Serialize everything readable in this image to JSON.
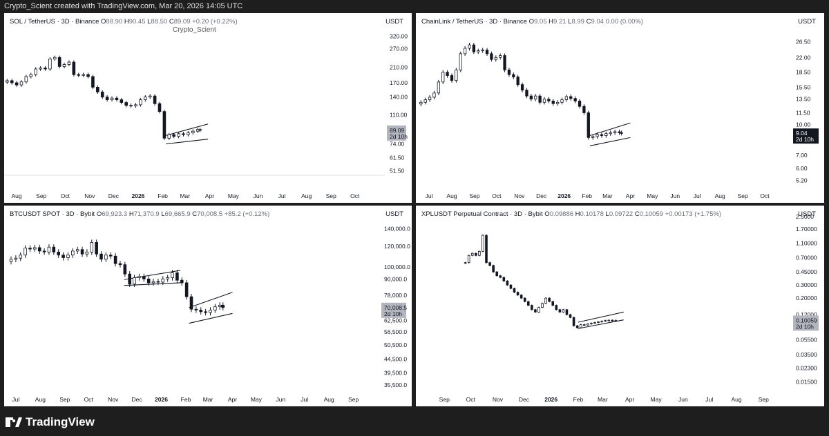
{
  "header": {
    "text": "Crypto_Scient created with TradingView.com, Mar 20, 2026 14:05 UTC"
  },
  "footer": {
    "logo_text": "TradingView",
    "logo_icon": "tradingview-logo-icon"
  },
  "chart_data": [
    {
      "type": "candlestick",
      "title": "SOL / TetherUS · 3D · Binance",
      "ohlc": {
        "O": "88.90",
        "H": "90.45",
        "L": "88.50",
        "C": "89.09",
        "change": "+0.20 (+0.22%)"
      },
      "watermark": "Crypto_Scient",
      "unit": "USDT",
      "scale": "log",
      "y_ticks": [
        "320.00",
        "270.00",
        "210.00",
        "170.00",
        "140.00",
        "110.00",
        "89.09",
        "74.00",
        "61.50",
        "51.50"
      ],
      "y_tick_values": [
        320,
        270,
        210,
        170,
        140,
        110,
        89.09,
        74,
        61.5,
        51.5
      ],
      "y_range": [
        42,
        350
      ],
      "x_ticks": [
        "Aug",
        "Sep",
        "Oct",
        "Nov",
        "Dec",
        "2026",
        "Feb",
        "Mar",
        "Apr",
        "May",
        "Jun",
        "Jul",
        "Aug",
        "Sep",
        "Oct"
      ],
      "last_price": "89.09",
      "countdown": "2d 10h",
      "price_label_style": "gray",
      "series": [
        {
          "x": "2025-07-20",
          "y": 175
        },
        {
          "x": "2025-07-26",
          "y": 170
        },
        {
          "x": "2025-08-01",
          "y": 165
        },
        {
          "x": "2025-08-07",
          "y": 172
        },
        {
          "x": "2025-08-13",
          "y": 185
        },
        {
          "x": "2025-08-19",
          "y": 190
        },
        {
          "x": "2025-08-25",
          "y": 205
        },
        {
          "x": "2025-08-31",
          "y": 208
        },
        {
          "x": "2025-09-06",
          "y": 205
        },
        {
          "x": "2025-09-12",
          "y": 235
        },
        {
          "x": "2025-09-18",
          "y": 240
        },
        {
          "x": "2025-09-24",
          "y": 212
        },
        {
          "x": "2025-09-30",
          "y": 218
        },
        {
          "x": "2025-10-06",
          "y": 225
        },
        {
          "x": "2025-10-12",
          "y": 190
        },
        {
          "x": "2025-10-18",
          "y": 188
        },
        {
          "x": "2025-10-24",
          "y": 190
        },
        {
          "x": "2025-10-30",
          "y": 185
        },
        {
          "x": "2025-11-05",
          "y": 160
        },
        {
          "x": "2025-11-11",
          "y": 150
        },
        {
          "x": "2025-11-17",
          "y": 140
        },
        {
          "x": "2025-11-23",
          "y": 135
        },
        {
          "x": "2025-11-29",
          "y": 138
        },
        {
          "x": "2025-12-05",
          "y": 135
        },
        {
          "x": "2025-12-11",
          "y": 130
        },
        {
          "x": "2025-12-17",
          "y": 125
        },
        {
          "x": "2025-12-23",
          "y": 124
        },
        {
          "x": "2025-12-29",
          "y": 126
        },
        {
          "x": "2026-01-04",
          "y": 135
        },
        {
          "x": "2026-01-10",
          "y": 140
        },
        {
          "x": "2026-01-16",
          "y": 142
        },
        {
          "x": "2026-01-22",
          "y": 128
        },
        {
          "x": "2026-01-28",
          "y": 115
        },
        {
          "x": "2026-02-03",
          "y": 80
        },
        {
          "x": "2026-02-09",
          "y": 84
        },
        {
          "x": "2026-02-15",
          "y": 82
        },
        {
          "x": "2026-02-21",
          "y": 85
        },
        {
          "x": "2026-02-27",
          "y": 84
        },
        {
          "x": "2026-03-05",
          "y": 86
        },
        {
          "x": "2026-03-11",
          "y": 88
        },
        {
          "x": "2026-03-17",
          "y": 90
        },
        {
          "x": "2026-03-20",
          "y": 89.09
        }
      ],
      "channel": {
        "lower": [
          {
            "x": "2026-02-05",
            "y": 74
          },
          {
            "x": "2026-03-30",
            "y": 79
          }
        ],
        "upper": [
          {
            "x": "2026-02-05",
            "y": 83
          },
          {
            "x": "2026-03-30",
            "y": 97
          }
        ]
      }
    },
    {
      "type": "candlestick",
      "title": "ChainLink / TetherUS · 3D · Binance",
      "ohlc": {
        "O": "9.05",
        "H": "9.21",
        "L": "8.99",
        "C": "9.04",
        "change": "0.00 (0.00%)"
      },
      "unit": "USDT",
      "scale": "log",
      "y_ticks": [
        "26.50",
        "22.00",
        "18.50",
        "15.50",
        "13.50",
        "11.50",
        "10.00",
        "9.04",
        "7.00",
        "6.00",
        "5.20"
      ],
      "y_tick_values": [
        26.5,
        22,
        18.5,
        15.5,
        13.5,
        11.5,
        10,
        9.04,
        7,
        6,
        5.2
      ],
      "y_range": [
        4.7,
        30
      ],
      "x_ticks": [
        "Jul",
        "Aug",
        "Sep",
        "Oct",
        "Nov",
        "Dec",
        "2026",
        "Feb",
        "Mar",
        "Apr",
        "May",
        "Jun",
        "Jul",
        "Aug",
        "Sep",
        "Oct"
      ],
      "last_price": "9.04",
      "countdown": "2d 10h",
      "price_label_style": "dark",
      "series": [
        {
          "x": "2025-06-20",
          "y": 13.0
        },
        {
          "x": "2025-06-26",
          "y": 13.4
        },
        {
          "x": "2025-07-02",
          "y": 13.8
        },
        {
          "x": "2025-07-08",
          "y": 14.5
        },
        {
          "x": "2025-07-14",
          "y": 16.5
        },
        {
          "x": "2025-07-20",
          "y": 18.5
        },
        {
          "x": "2025-07-26",
          "y": 17.8
        },
        {
          "x": "2025-08-01",
          "y": 16.8
        },
        {
          "x": "2025-08-07",
          "y": 19.0
        },
        {
          "x": "2025-08-13",
          "y": 23.0
        },
        {
          "x": "2025-08-19",
          "y": 24.5
        },
        {
          "x": "2025-08-25",
          "y": 25.5
        },
        {
          "x": "2025-08-31",
          "y": 23.5
        },
        {
          "x": "2025-09-06",
          "y": 23.8
        },
        {
          "x": "2025-09-12",
          "y": 24.0
        },
        {
          "x": "2025-09-18",
          "y": 23.0
        },
        {
          "x": "2025-09-24",
          "y": 21.5
        },
        {
          "x": "2025-09-30",
          "y": 22.0
        },
        {
          "x": "2025-10-06",
          "y": 22.5
        },
        {
          "x": "2025-10-12",
          "y": 19.0
        },
        {
          "x": "2025-10-18",
          "y": 18.0
        },
        {
          "x": "2025-10-24",
          "y": 17.5
        },
        {
          "x": "2025-10-30",
          "y": 16.0
        },
        {
          "x": "2025-11-05",
          "y": 15.0
        },
        {
          "x": "2025-11-11",
          "y": 14.0
        },
        {
          "x": "2025-11-17",
          "y": 13.5
        },
        {
          "x": "2025-11-23",
          "y": 14.0
        },
        {
          "x": "2025-11-29",
          "y": 13.0
        },
        {
          "x": "2025-12-05",
          "y": 13.5
        },
        {
          "x": "2025-12-11",
          "y": 13.2
        },
        {
          "x": "2025-12-17",
          "y": 12.8
        },
        {
          "x": "2025-12-23",
          "y": 13.0
        },
        {
          "x": "2025-12-29",
          "y": 13.4
        },
        {
          "x": "2026-01-04",
          "y": 13.9
        },
        {
          "x": "2026-01-10",
          "y": 13.6
        },
        {
          "x": "2026-01-16",
          "y": 13.2
        },
        {
          "x": "2026-01-22",
          "y": 12.4
        },
        {
          "x": "2026-01-28",
          "y": 11.5
        },
        {
          "x": "2026-02-03",
          "y": 8.6
        },
        {
          "x": "2026-02-09",
          "y": 8.7
        },
        {
          "x": "2026-02-15",
          "y": 8.9
        },
        {
          "x": "2026-02-21",
          "y": 8.8
        },
        {
          "x": "2026-02-27",
          "y": 9.0
        },
        {
          "x": "2026-03-05",
          "y": 9.1
        },
        {
          "x": "2026-03-11",
          "y": 9.2
        },
        {
          "x": "2026-03-17",
          "y": 9.1
        },
        {
          "x": "2026-03-20",
          "y": 9.04
        }
      ],
      "channel": {
        "lower": [
          {
            "x": "2026-02-05",
            "y": 7.8
          },
          {
            "x": "2026-04-01",
            "y": 8.6
          }
        ],
        "upper": [
          {
            "x": "2026-02-05",
            "y": 8.8
          },
          {
            "x": "2026-04-01",
            "y": 10.2
          }
        ]
      }
    },
    {
      "type": "candlestick",
      "title": "BTCUSDT SPOT · 3D · Bybit",
      "ohlc": {
        "O": "69,923.3",
        "H": "71,370.9",
        "L": "69,665.9",
        "C": "70,008.5",
        "change": "+85.2 (+0.12%)"
      },
      "unit": "USDT",
      "scale": "log",
      "y_ticks": [
        "140,000.0",
        "120,000.0",
        "100,000.0",
        "90,000.0",
        "78,000.0",
        "70,008.5",
        "62,500.0",
        "56,500.0",
        "50,500.0",
        "44,500.0",
        "39,500.0",
        "35,500.0"
      ],
      "y_tick_values": [
        140000,
        120000,
        100000,
        90000,
        78000,
        70008.5,
        62500,
        56500,
        50500,
        44500,
        39500,
        35500
      ],
      "y_range": [
        33000,
        150000
      ],
      "x_ticks": [
        "Jul",
        "Aug",
        "Sep",
        "Oct",
        "Nov",
        "Dec",
        "2026",
        "Feb",
        "Mar",
        "Apr",
        "May",
        "Jun",
        "Jul",
        "Aug",
        "Sep"
      ],
      "last_price": "70,008.5",
      "countdown": "2d 10h",
      "price_label_style": "gray",
      "series": [
        {
          "x": "2025-06-25",
          "y": 107000
        },
        {
          "x": "2025-07-01",
          "y": 108000
        },
        {
          "x": "2025-07-07",
          "y": 111000
        },
        {
          "x": "2025-07-13",
          "y": 118000
        },
        {
          "x": "2025-07-19",
          "y": 117000
        },
        {
          "x": "2025-07-25",
          "y": 118500
        },
        {
          "x": "2025-07-31",
          "y": 115000
        },
        {
          "x": "2025-08-06",
          "y": 114000
        },
        {
          "x": "2025-08-12",
          "y": 119000
        },
        {
          "x": "2025-08-18",
          "y": 114000
        },
        {
          "x": "2025-08-24",
          "y": 111000
        },
        {
          "x": "2025-08-30",
          "y": 108500
        },
        {
          "x": "2025-09-05",
          "y": 111000
        },
        {
          "x": "2025-09-11",
          "y": 115000
        },
        {
          "x": "2025-09-17",
          "y": 116500
        },
        {
          "x": "2025-09-23",
          "y": 112000
        },
        {
          "x": "2025-09-29",
          "y": 114000
        },
        {
          "x": "2025-10-05",
          "y": 124000
        },
        {
          "x": "2025-10-11",
          "y": 112000
        },
        {
          "x": "2025-10-17",
          "y": 107000
        },
        {
          "x": "2025-10-23",
          "y": 111000
        },
        {
          "x": "2025-10-29",
          "y": 110000
        },
        {
          "x": "2025-11-04",
          "y": 103000
        },
        {
          "x": "2025-11-10",
          "y": 102000
        },
        {
          "x": "2025-11-16",
          "y": 94000
        },
        {
          "x": "2025-11-22",
          "y": 86000
        },
        {
          "x": "2025-11-28",
          "y": 91000
        },
        {
          "x": "2025-12-04",
          "y": 92000
        },
        {
          "x": "2025-12-10",
          "y": 90000
        },
        {
          "x": "2025-12-16",
          "y": 87000
        },
        {
          "x": "2025-12-22",
          "y": 88000
        },
        {
          "x": "2025-12-28",
          "y": 87500
        },
        {
          "x": "2026-01-03",
          "y": 90000
        },
        {
          "x": "2026-01-09",
          "y": 91000
        },
        {
          "x": "2026-01-15",
          "y": 95000
        },
        {
          "x": "2026-01-21",
          "y": 89000
        },
        {
          "x": "2026-01-27",
          "y": 87000
        },
        {
          "x": "2026-02-02",
          "y": 77000
        },
        {
          "x": "2026-02-08",
          "y": 69000
        },
        {
          "x": "2026-02-14",
          "y": 68500
        },
        {
          "x": "2026-02-20",
          "y": 67500
        },
        {
          "x": "2026-02-26",
          "y": 67000
        },
        {
          "x": "2026-03-04",
          "y": 68500
        },
        {
          "x": "2026-03-10",
          "y": 70500
        },
        {
          "x": "2026-03-16",
          "y": 71500
        },
        {
          "x": "2026-03-20",
          "y": 70008.5
        }
      ],
      "channel": {
        "lower": [
          {
            "x": "2026-02-05",
            "y": 61000
          },
          {
            "x": "2026-04-01",
            "y": 66500
          }
        ],
        "upper": [
          {
            "x": "2026-02-05",
            "y": 70000
          },
          {
            "x": "2026-04-01",
            "y": 80000
          }
        ]
      },
      "channel2": {
        "lower": [
          {
            "x": "2025-11-15",
            "y": 85000
          },
          {
            "x": "2026-01-25",
            "y": 87000
          }
        ],
        "upper": [
          {
            "x": "2025-11-15",
            "y": 89500
          },
          {
            "x": "2026-01-25",
            "y": 97000
          }
        ]
      }
    },
    {
      "type": "candlestick",
      "title": "XPLUSDT Perpetual Contract · 3D · Bybit",
      "ohlc": {
        "O": "0.09886",
        "H": "0.10178",
        "L": "0.09722",
        "C": "0.10059",
        "change": "+0.00173 (+1.75%)"
      },
      "unit": "USDT",
      "scale": "log",
      "y_ticks": [
        "2.5000",
        "1.70000",
        "1.10000",
        "0.70000",
        "0.45000",
        "0.30000",
        "0.20000",
        "0.12000",
        "0.10059",
        "0.05500",
        "0.03500",
        "0.02300",
        "0.01500"
      ],
      "y_tick_values": [
        2.5,
        1.7,
        1.1,
        0.7,
        0.45,
        0.3,
        0.2,
        0.12,
        0.10059,
        0.055,
        0.035,
        0.023,
        0.015
      ],
      "y_range": [
        0.011,
        2.6
      ],
      "x_ticks": [
        "Sep",
        "Oct",
        "Nov",
        "Dec",
        "2026",
        "Feb",
        "Mar",
        "Apr",
        "May",
        "Jun",
        "Jul",
        "Aug",
        "Sep"
      ],
      "last_price": "0.10059",
      "countdown": "2d 10h",
      "price_label_style": "gray",
      "series": [
        {
          "x": "2025-09-25",
          "y": 0.6
        },
        {
          "x": "2025-09-29",
          "y": 0.75
        },
        {
          "x": "2025-10-03",
          "y": 0.8
        },
        {
          "x": "2025-10-07",
          "y": 0.75
        },
        {
          "x": "2025-10-11",
          "y": 0.85
        },
        {
          "x": "2025-10-15",
          "y": 1.4
        },
        {
          "x": "2025-10-19",
          "y": 0.6
        },
        {
          "x": "2025-10-23",
          "y": 0.55
        },
        {
          "x": "2025-10-27",
          "y": 0.45
        },
        {
          "x": "2025-10-31",
          "y": 0.4
        },
        {
          "x": "2025-11-04",
          "y": 0.38
        },
        {
          "x": "2025-11-08",
          "y": 0.34
        },
        {
          "x": "2025-11-12",
          "y": 0.3
        },
        {
          "x": "2025-11-16",
          "y": 0.27
        },
        {
          "x": "2025-11-20",
          "y": 0.24
        },
        {
          "x": "2025-11-24",
          "y": 0.22
        },
        {
          "x": "2025-11-28",
          "y": 0.2
        },
        {
          "x": "2025-12-02",
          "y": 0.18
        },
        {
          "x": "2025-12-06",
          "y": 0.16
        },
        {
          "x": "2025-12-10",
          "y": 0.14
        },
        {
          "x": "2025-12-14",
          "y": 0.13
        },
        {
          "x": "2025-12-18",
          "y": 0.15
        },
        {
          "x": "2025-12-22",
          "y": 0.17
        },
        {
          "x": "2025-12-26",
          "y": 0.2
        },
        {
          "x": "2025-12-30",
          "y": 0.18
        },
        {
          "x": "2026-01-03",
          "y": 0.16
        },
        {
          "x": "2026-01-07",
          "y": 0.14
        },
        {
          "x": "2026-01-11",
          "y": 0.13
        },
        {
          "x": "2026-01-15",
          "y": 0.14
        },
        {
          "x": "2026-01-19",
          "y": 0.12
        },
        {
          "x": "2026-01-23",
          "y": 0.11
        },
        {
          "x": "2026-01-27",
          "y": 0.085
        },
        {
          "x": "2026-01-31",
          "y": 0.08
        },
        {
          "x": "2026-02-04",
          "y": 0.088
        },
        {
          "x": "2026-02-08",
          "y": 0.087
        },
        {
          "x": "2026-02-12",
          "y": 0.09
        },
        {
          "x": "2026-02-16",
          "y": 0.092
        },
        {
          "x": "2026-02-20",
          "y": 0.094
        },
        {
          "x": "2026-02-24",
          "y": 0.096
        },
        {
          "x": "2026-02-28",
          "y": 0.098
        },
        {
          "x": "2026-03-04",
          "y": 0.1
        },
        {
          "x": "2026-03-08",
          "y": 0.101
        },
        {
          "x": "2026-03-12",
          "y": 0.099
        },
        {
          "x": "2026-03-16",
          "y": 0.10059
        }
      ],
      "channel": {
        "lower": [
          {
            "x": "2026-02-01",
            "y": 0.078
          },
          {
            "x": "2026-03-25",
            "y": 0.102
          }
        ],
        "upper": [
          {
            "x": "2026-02-01",
            "y": 0.095
          },
          {
            "x": "2026-03-25",
            "y": 0.13
          }
        ]
      }
    }
  ]
}
